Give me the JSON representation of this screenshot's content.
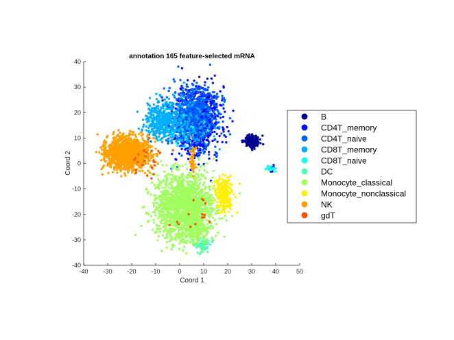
{
  "chart_data": {
    "type": "scatter",
    "title": "annotation 165 feature-selected mRNA",
    "xlabel": "Coord 1",
    "ylabel": "Coord 2",
    "xlim": [
      -40,
      50
    ],
    "ylim": [
      -40,
      40
    ],
    "xticks": [
      -40,
      -30,
      -20,
      -10,
      0,
      10,
      20,
      30,
      40,
      50
    ],
    "yticks": [
      -40,
      -30,
      -20,
      -10,
      0,
      10,
      20,
      30,
      40
    ],
    "grid": false,
    "legend_position": "right",
    "series": [
      {
        "name": "B",
        "color": "#00008f",
        "clusters": [
          {
            "cx": 30,
            "cy": 8.5,
            "sx": 1.6,
            "sy": 1.2,
            "n": 160
          }
        ]
      },
      {
        "name": "CD4T_memory",
        "color": "#0010ff",
        "clusters": [
          {
            "cx": 7,
            "cy": 17,
            "sx": 4.5,
            "sy": 6.5,
            "n": 900
          },
          {
            "cx": 38.5,
            "cy": -2,
            "sx": 0.8,
            "sy": 0.6,
            "n": 12
          }
        ]
      },
      {
        "name": "CD4T_naive",
        "color": "#0060ff",
        "clusters": [
          {
            "cx": 5,
            "cy": 19,
            "sx": 5.5,
            "sy": 6,
            "n": 600
          }
        ]
      },
      {
        "name": "CD8T_memory",
        "color": "#00b0ff",
        "clusters": [
          {
            "cx": -7,
            "cy": 17,
            "sx": 3.8,
            "sy": 3.6,
            "n": 420
          },
          {
            "cx": 5,
            "cy": 15,
            "sx": 4.5,
            "sy": 6,
            "n": 120
          }
        ]
      },
      {
        "name": "CD8T_naive",
        "color": "#10ffef",
        "clusters": [
          {
            "cx": 38,
            "cy": -2.2,
            "sx": 1.1,
            "sy": 0.5,
            "n": 20
          },
          {
            "cx": 2,
            "cy": 10,
            "sx": 4,
            "sy": 4,
            "n": 15
          }
        ]
      },
      {
        "name": "DC",
        "color": "#50ffaf",
        "clusters": [
          {
            "cx": 9.5,
            "cy": -32,
            "sx": 1.6,
            "sy": 1.3,
            "n": 80
          }
        ]
      },
      {
        "name": "Monocyte_classical",
        "color": "#a0ff5f",
        "clusters": [
          {
            "cx": 2,
            "cy": -17,
            "sx": 6,
            "sy": 6.5,
            "n": 1700
          },
          {
            "cx": 7,
            "cy": -27,
            "sx": 2.5,
            "sy": 2.5,
            "n": 100
          }
        ]
      },
      {
        "name": "Monocyte_nonclassical",
        "color": "#ffef00",
        "clusters": [
          {
            "cx": 18.5,
            "cy": -12,
            "sx": 1.7,
            "sy": 3.2,
            "n": 260
          }
        ]
      },
      {
        "name": "NK",
        "color": "#ffa000",
        "clusters": [
          {
            "cx": -22,
            "cy": 4,
            "sx": 4.5,
            "sy": 3,
            "n": 1400
          },
          {
            "cx": 5.5,
            "cy": 1,
            "sx": 0.6,
            "sy": 3,
            "n": 40
          }
        ]
      },
      {
        "name": "gdT",
        "color": "#ff5000",
        "clusters": [
          {
            "cx": -14,
            "cy": 2,
            "sx": 6,
            "sy": 4,
            "n": 25
          },
          {
            "cx": 5,
            "cy": -20,
            "sx": 5,
            "sy": 6,
            "n": 15
          }
        ]
      }
    ]
  }
}
